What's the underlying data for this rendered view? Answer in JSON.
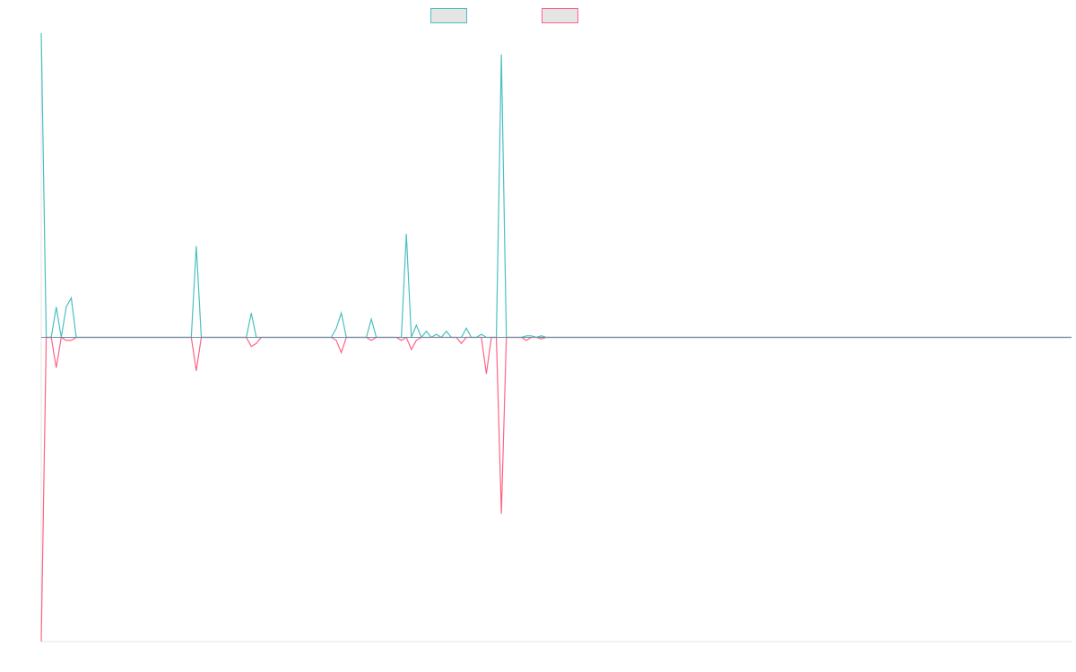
{
  "chart_data": {
    "type": "line",
    "title": "",
    "xlabel": "",
    "ylabel": "",
    "grid": false,
    "legend_position": "top-center",
    "x_count": 207,
    "xlim": [
      0,
      206
    ],
    "ylim": [
      -100,
      100
    ],
    "series": [
      {
        "color": "#4bc0c0",
        "fill": "#e5e5e5",
        "points": [
          [
            0,
            100
          ],
          [
            1,
            0
          ],
          [
            2,
            0
          ],
          [
            3,
            10
          ],
          [
            4,
            0
          ],
          [
            5,
            10
          ],
          [
            6,
            13
          ],
          [
            7,
            0
          ],
          [
            31,
            30
          ],
          [
            32,
            0
          ],
          [
            42,
            8
          ],
          [
            43,
            0
          ],
          [
            59,
            3
          ],
          [
            60,
            8
          ],
          [
            61,
            0
          ],
          [
            66,
            6
          ],
          [
            67,
            0
          ],
          [
            72,
            0
          ],
          [
            73,
            34
          ],
          [
            74,
            0
          ],
          [
            75,
            4
          ],
          [
            76,
            0
          ],
          [
            77,
            2
          ],
          [
            78,
            0
          ],
          [
            79,
            1
          ],
          [
            80,
            0
          ],
          [
            81,
            2
          ],
          [
            82,
            0
          ],
          [
            84,
            0
          ],
          [
            85,
            3
          ],
          [
            86,
            0
          ],
          [
            88,
            1
          ],
          [
            89,
            0
          ],
          [
            90,
            0
          ],
          [
            91,
            0
          ],
          [
            92,
            93
          ],
          [
            93,
            0
          ],
          [
            97,
            0.5
          ],
          [
            98,
            0.5
          ],
          [
            99,
            0
          ],
          [
            100,
            0.5
          ]
        ]
      },
      {
        "color": "#ff6384",
        "fill": "#e5e5e5",
        "points": [
          [
            0,
            -100
          ],
          [
            1,
            0
          ],
          [
            2,
            0
          ],
          [
            3,
            -10
          ],
          [
            4,
            0
          ],
          [
            5,
            -1
          ],
          [
            6,
            -1
          ],
          [
            7,
            0
          ],
          [
            31,
            -11
          ],
          [
            32,
            0
          ],
          [
            42,
            -3
          ],
          [
            43,
            -2
          ],
          [
            44,
            0
          ],
          [
            59,
            -1
          ],
          [
            60,
            -5
          ],
          [
            61,
            0
          ],
          [
            66,
            -1
          ],
          [
            67,
            0
          ],
          [
            72,
            -1
          ],
          [
            73,
            0
          ],
          [
            74,
            -4
          ],
          [
            75,
            -1
          ],
          [
            76,
            0
          ],
          [
            84,
            -2
          ],
          [
            85,
            0
          ],
          [
            88,
            0
          ],
          [
            89,
            -12
          ],
          [
            90,
            0
          ],
          [
            91,
            0
          ],
          [
            92,
            -58
          ],
          [
            93,
            0
          ],
          [
            97,
            -1
          ],
          [
            98,
            0
          ],
          [
            100,
            -0.5
          ],
          [
            101,
            0
          ]
        ]
      }
    ]
  }
}
